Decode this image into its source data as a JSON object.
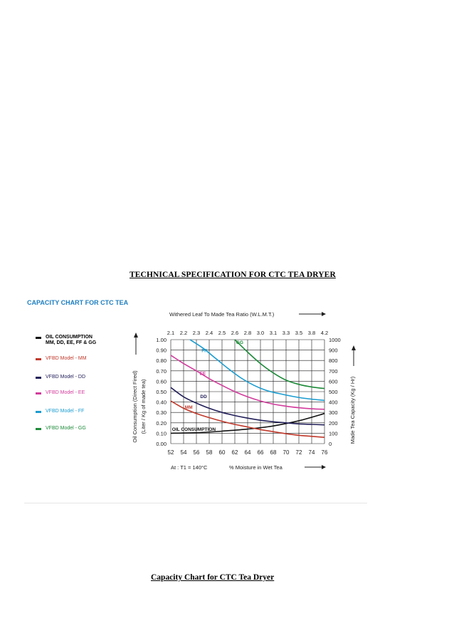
{
  "page": {
    "heading": "TECHNICAL SPECIFICATION FOR CTC TEA DRYER",
    "caption": "Capacity Chart for CTC Tea Dryer"
  },
  "chart_data": {
    "type": "line",
    "title": "CAPACITY CHART FOR CTC TEA",
    "title_color": "#1e7fc0",
    "top_axis_label": "Withered Leaf To Made Tea Ratio (W.L.M.T.)",
    "top_ticks": [
      "2.1",
      "2.2",
      "2.3",
      "2.4",
      "2.5",
      "2.6",
      "2.8",
      "3.0",
      "3.1",
      "3.3",
      "3.5",
      "3.8",
      "4.2"
    ],
    "bottom_axis_label": "% Moisture in Wet Tea",
    "bottom_note": "At : T1 = 140°C",
    "x_ticks": [
      "52",
      "54",
      "56",
      "58",
      "60",
      "62",
      "64",
      "66",
      "68",
      "70",
      "72",
      "74",
      "76"
    ],
    "xlim": [
      52,
      76
    ],
    "left_axis_label_line1": "Oil Consumption (Direct Fired)",
    "left_axis_label_line2": "(Liter / Kg of made tea)",
    "left_ticks": [
      "0.00",
      "0.10",
      "0.20",
      "0.30",
      "0.40",
      "0.50",
      "0.60",
      "0.70",
      "0.80",
      "0.90",
      "1.00"
    ],
    "ylim_left": [
      0,
      1.0
    ],
    "right_axis_label": "Made Tea Capacity (Kg / Hr)",
    "right_ticks": [
      "0",
      "100",
      "200",
      "300",
      "400",
      "500",
      "600",
      "700",
      "800",
      "900",
      "1000"
    ],
    "ylim_right": [
      0,
      1000
    ],
    "grid": true,
    "legend_placement": "left",
    "legend": [
      {
        "label_line1": "OIL CONSUMPTION",
        "label_line2": "MM, DD, EE, FF & GG",
        "color": "#111111",
        "bold": true
      },
      {
        "label_line1": "VFBD Model - MM",
        "color": "#c0392b"
      },
      {
        "label_line1": "VFBD Model - DD",
        "color": "#23205a"
      },
      {
        "label_line1": "VFBD Model - EE",
        "color": "#d23c9c"
      },
      {
        "label_line1": "VFBD Model - FF",
        "color": "#1a9cd0"
      },
      {
        "label_line1": "VFBD Model - GG",
        "color": "#1e8b3a"
      }
    ],
    "series": [
      {
        "name": "OIL CONSUMPTION",
        "label": "OIL CONSUMPTION",
        "color": "#111111",
        "axis": "left",
        "x": [
          52,
          56,
          60,
          64,
          68,
          72,
          76
        ],
        "y": [
          0.1,
          0.105,
          0.12,
          0.14,
          0.17,
          0.22,
          0.29
        ]
      },
      {
        "name": "MM",
        "label": "MM",
        "color": "#c0392b",
        "axis": "right",
        "x": [
          52,
          54,
          56,
          58,
          60,
          62,
          64,
          66,
          68,
          70,
          72,
          74,
          76
        ],
        "y": [
          410,
          340,
          290,
          250,
          215,
          185,
          160,
          135,
          115,
          95,
          80,
          70,
          60
        ]
      },
      {
        "name": "DD",
        "label": "DD",
        "color": "#23205a",
        "axis": "right",
        "x": [
          52,
          54,
          56,
          58,
          60,
          62,
          64,
          66,
          68,
          70,
          72,
          74,
          76
        ],
        "y": [
          540,
          450,
          390,
          340,
          300,
          270,
          245,
          225,
          210,
          200,
          190,
          185,
          180
        ]
      },
      {
        "name": "EE",
        "label": "EE",
        "color": "#d23c9c",
        "axis": "right",
        "x": [
          52,
          54,
          56,
          58,
          60,
          62,
          64,
          66,
          68,
          70,
          72,
          74,
          76
        ],
        "y": [
          850,
          770,
          700,
          625,
          560,
          500,
          450,
          410,
          380,
          360,
          345,
          335,
          330
        ]
      },
      {
        "name": "FF",
        "label": "FF",
        "color": "#1a9cd0",
        "axis": "right",
        "x": [
          55,
          57,
          59,
          61,
          63,
          65,
          67,
          69,
          71,
          73,
          76
        ],
        "y": [
          1000,
          920,
          820,
          720,
          630,
          560,
          510,
          480,
          455,
          435,
          415
        ]
      },
      {
        "name": "GG",
        "label": "GG",
        "color": "#1e8b3a",
        "axis": "right",
        "x": [
          62,
          64,
          66,
          68,
          70,
          72,
          74,
          76
        ],
        "y": [
          1000,
          880,
          770,
          680,
          610,
          570,
          545,
          530
        ]
      }
    ]
  }
}
